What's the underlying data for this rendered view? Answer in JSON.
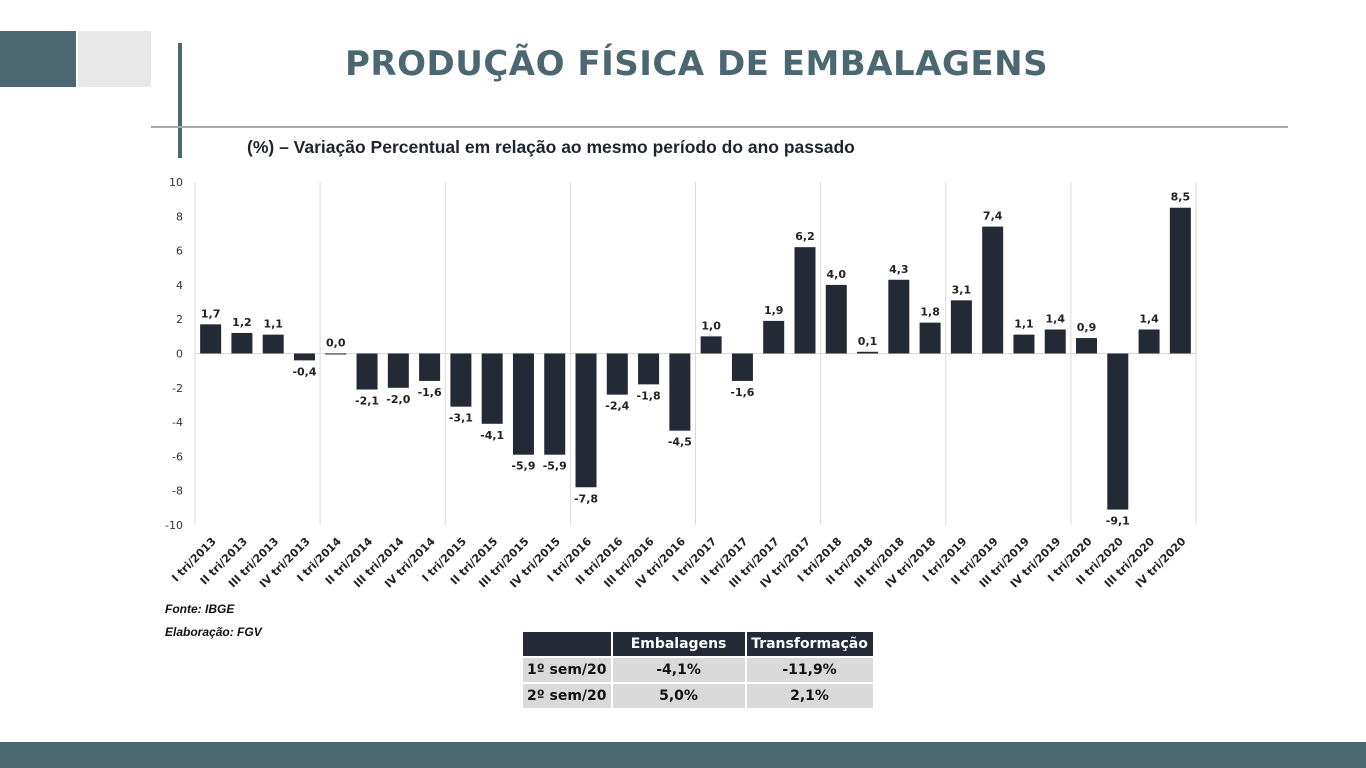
{
  "header": {
    "title": "PRODUÇÃO FÍSICA DE EMBALAGENS",
    "subtitle": "(%) – Variação Percentual em relação ao mesmo período do ano passado"
  },
  "colors": {
    "bar": "#232a35",
    "accent": "#4b6772",
    "grid": "#d9d9d9"
  },
  "chart_data": {
    "type": "bar",
    "title": "",
    "xlabel": "",
    "ylabel": "",
    "ylim": [
      -10,
      10
    ],
    "yticks": [
      10,
      8,
      6,
      4,
      2,
      0,
      -2,
      -4,
      -6,
      -8,
      -10
    ],
    "grid": "vertical lines between years",
    "legend": "none",
    "categories": [
      "I tri/2013",
      "II tri/2013",
      "III tri/2013",
      "IV tri/2013",
      "I tri/2014",
      "II tri/2014",
      "III tri/2014",
      "IV tri/2014",
      "I tri/2015",
      "II tri/2015",
      "III tri/2015",
      "IV tri/2015",
      "I tri/2016",
      "II tri/2016",
      "III tri/2016",
      "IV tri/2016",
      "I tri/2017",
      "II tri/2017",
      "III tri/2017",
      "IV tri/2017",
      "I tri/2018",
      "II tri/2018",
      "III tri/2018",
      "IV tri/2018",
      "I tri/2019",
      "II tri/2019",
      "III tri/2019",
      "IV tri/2019",
      "I tri/2020",
      "II tri/2020",
      "III tri/2020",
      "IV tri/2020"
    ],
    "values": [
      1.7,
      1.2,
      1.1,
      -0.4,
      0.0,
      -2.1,
      -2.0,
      -1.6,
      -3.1,
      -4.1,
      -5.9,
      -5.9,
      -7.8,
      -2.4,
      -1.8,
      -4.5,
      1.0,
      -1.6,
      1.9,
      6.2,
      4.0,
      0.1,
      4.3,
      1.8,
      3.1,
      7.4,
      1.1,
      1.4,
      0.9,
      -9.1,
      1.4,
      8.5
    ],
    "labels": [
      "1,7",
      "1,2",
      "1,1",
      "-0,4",
      "0,0",
      "-2,1",
      "-2,0",
      "-1,6",
      "-3,1",
      "-4,1",
      "-5,9",
      "-5,9",
      "-7,8",
      "-2,4",
      "-1,8",
      "-4,5",
      "1,0",
      "-1,6",
      "1,9",
      "6,2",
      "4,0",
      "0,1",
      "4,3",
      "1,8",
      "3,1",
      "7,4",
      "1,1",
      "1,4",
      "0,9",
      "-9,1",
      "1,4",
      "8,5"
    ]
  },
  "notes": {
    "source": "Fonte: IBGE",
    "credit": "Elaboração: FGV"
  },
  "summary_table": {
    "headers": [
      "",
      "Embalagens",
      "Transformação"
    ],
    "rows": [
      [
        "1º sem/20",
        "-4,1%",
        "-11,9%"
      ],
      [
        "2º sem/20",
        "5,0%",
        "2,1%"
      ]
    ]
  }
}
